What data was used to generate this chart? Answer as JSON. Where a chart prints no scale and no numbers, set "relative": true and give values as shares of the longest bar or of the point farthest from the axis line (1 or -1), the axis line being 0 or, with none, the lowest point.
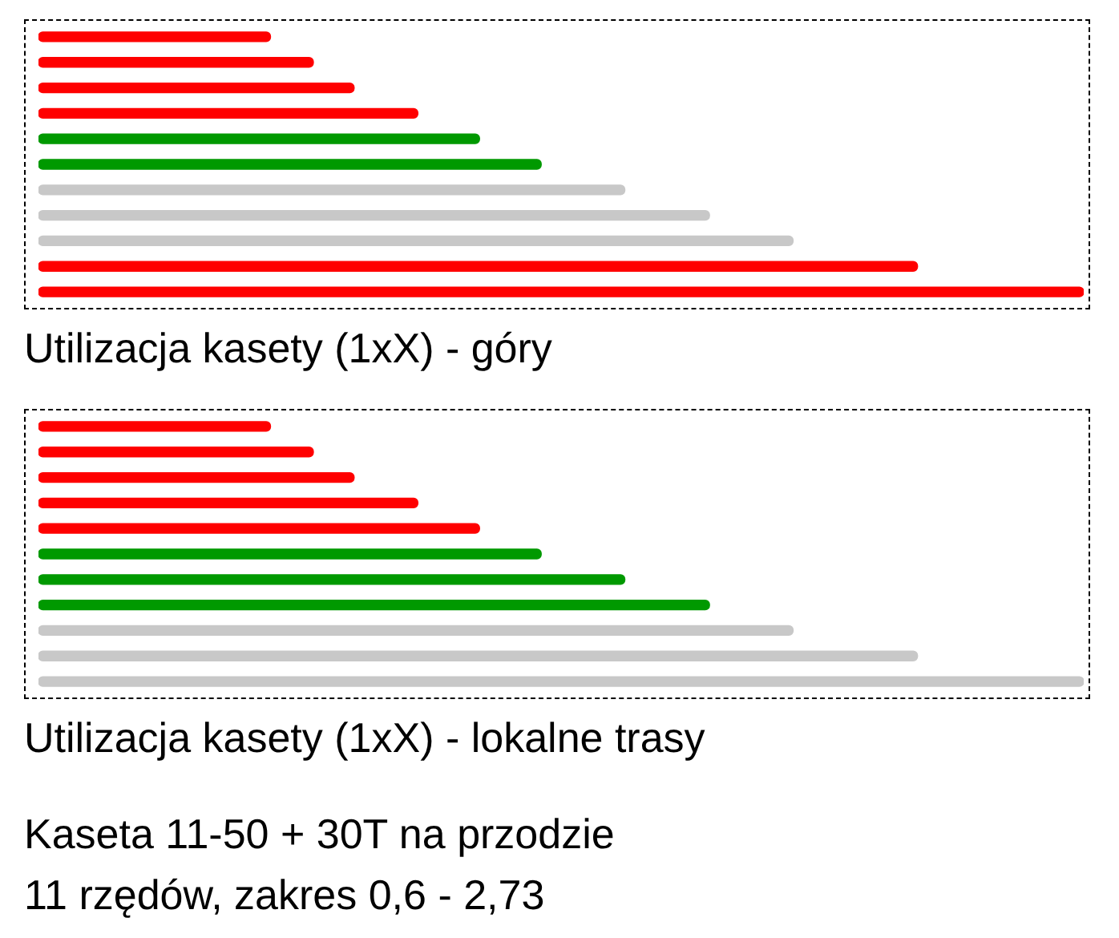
{
  "chart_data": [
    {
      "type": "bar",
      "orientation": "horizontal",
      "relative": true,
      "title": "Utilizacja kasety (1xX) - góry",
      "categories": [
        null,
        null,
        null,
        null,
        null,
        null,
        null,
        null,
        null,
        null,
        null
      ],
      "values": [
        0.222,
        0.263,
        0.302,
        0.363,
        0.422,
        0.481,
        0.561,
        0.642,
        0.722,
        0.841,
        1
      ],
      "colors": [
        "#ff0000",
        "#ff0000",
        "#ff0000",
        "#ff0000",
        "#009900",
        "#009900",
        "#c8c8c8",
        "#c8c8c8",
        "#c8c8c8",
        "#ff0000",
        "#ff0000"
      ]
    },
    {
      "type": "bar",
      "orientation": "horizontal",
      "relative": true,
      "title": "Utilizacja kasety (1xX) - lokalne trasy",
      "categories": [
        null,
        null,
        null,
        null,
        null,
        null,
        null,
        null,
        null,
        null,
        null
      ],
      "values": [
        0.222,
        0.263,
        0.302,
        0.363,
        0.422,
        0.481,
        0.561,
        0.642,
        0.722,
        0.841,
        1
      ],
      "colors": [
        "#ff0000",
        "#ff0000",
        "#ff0000",
        "#ff0000",
        "#ff0000",
        "#009900",
        "#009900",
        "#009900",
        "#c8c8c8",
        "#c8c8c8",
        "#c8c8c8"
      ],
      "annotations": [
        "Kaseta 11-50 + 30T na przodzie",
        "11 rzędów, zakres 0,6 - 2,73"
      ]
    }
  ]
}
